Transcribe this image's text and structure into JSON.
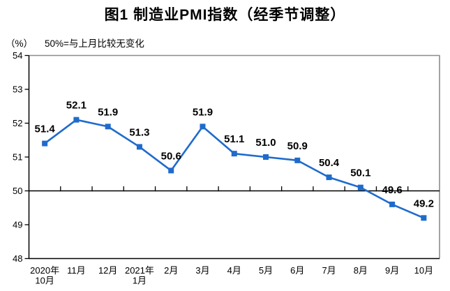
{
  "figure": {
    "title": "图1 制造业PMI指数（经季节调整）",
    "unit_label": "（%）",
    "axis_note": "50%=与上月比较无变化"
  },
  "chart_data": {
    "type": "line",
    "title": "图1 制造业PMI指数（经季节调整）",
    "subtitle_unit": "（%）",
    "subtitle_note": "50%=与上月比较无变化",
    "categories": [
      [
        "2020年",
        "10月"
      ],
      [
        "11月"
      ],
      [
        "12月"
      ],
      [
        "2021年",
        "1月"
      ],
      [
        "2月"
      ],
      [
        "3月"
      ],
      [
        "4月"
      ],
      [
        "5月"
      ],
      [
        "6月"
      ],
      [
        "7月"
      ],
      [
        "8月"
      ],
      [
        "9月"
      ],
      [
        "10月"
      ]
    ],
    "values": [
      51.4,
      52.1,
      51.9,
      51.3,
      50.6,
      51.9,
      51.1,
      51.0,
      50.9,
      50.4,
      50.1,
      49.6,
      49.2
    ],
    "point_labels": [
      "51.4",
      "52.1",
      "51.9",
      "51.3",
      "50.6",
      "51.9",
      "51.1",
      "51.0",
      "50.9",
      "50.4",
      "50.1",
      "49.6",
      "49.2"
    ],
    "y_ticks": [
      48,
      49,
      50,
      51,
      52,
      53,
      54
    ],
    "ylim": [
      48,
      54
    ],
    "axis_crosses_at": 50,
    "grid": false,
    "legend": false,
    "marker": "square",
    "colors": {
      "line": "#1F6BCC",
      "marker": "#1F6BCC",
      "axis": "#000000",
      "plot_border": "#8C8C8C",
      "text": "#000000"
    }
  }
}
